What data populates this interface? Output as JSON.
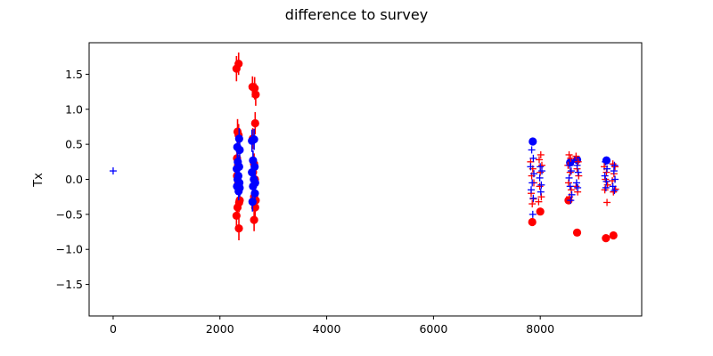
{
  "chart_data": {
    "type": "scatter",
    "title": "difference to survey",
    "xlabel": "",
    "ylabel": "Tx",
    "xlim": [
      -450,
      9900
    ],
    "ylim": [
      -1.95,
      1.95
    ],
    "xticks": [
      0,
      2000,
      4000,
      6000,
      8000
    ],
    "xtick_labels": [
      "0",
      "2000",
      "4000",
      "6000",
      "8000"
    ],
    "yticks": [
      -1.5,
      -1.0,
      -0.5,
      0.0,
      0.5,
      1.0,
      1.5
    ],
    "ytick_labels": [
      "−1.5",
      "−1.0",
      "−0.5",
      "0.0",
      "0.5",
      "1.0",
      "1.5"
    ],
    "grid": false,
    "colors": {
      "red": "#ff0000",
      "blue": "#0000ff",
      "axes": "#000000",
      "background": "#ffffff"
    },
    "series": [
      {
        "name": "red-circles-errorbars",
        "marker": "circle",
        "color": "#ff0000",
        "errorbars": true,
        "points": [
          [
            2310,
            1.58,
            0.18
          ],
          [
            2350,
            1.65,
            0.16
          ],
          [
            2330,
            0.68,
            0.18
          ],
          [
            2350,
            0.63,
            0.16
          ],
          [
            2320,
            0.3,
            0.15
          ],
          [
            2340,
            0.2,
            0.14
          ],
          [
            2320,
            0.05,
            0.12
          ],
          [
            2345,
            -0.05,
            0.12
          ],
          [
            2330,
            -0.4,
            0.15
          ],
          [
            2310,
            -0.52,
            0.16
          ],
          [
            2360,
            -0.33,
            0.14
          ],
          [
            2370,
            -0.3,
            0.14
          ],
          [
            2355,
            -0.7,
            0.17
          ],
          [
            2610,
            1.32,
            0.15
          ],
          [
            2650,
            1.3,
            0.16
          ],
          [
            2670,
            1.21,
            0.16
          ],
          [
            2660,
            0.8,
            0.16
          ],
          [
            2615,
            0.58,
            0.15
          ],
          [
            2640,
            0.22,
            0.15
          ],
          [
            2620,
            0.1,
            0.14
          ],
          [
            2655,
            0.0,
            0.13
          ],
          [
            2640,
            -0.25,
            0.14
          ],
          [
            2670,
            -0.3,
            0.14
          ],
          [
            2660,
            -0.4,
            0.14
          ],
          [
            2640,
            -0.58,
            0.16
          ]
        ]
      },
      {
        "name": "blue-circles-errorbars",
        "marker": "circle",
        "color": "#0000ff",
        "errorbars": true,
        "points": [
          [
            2325,
            0.46,
            0.16
          ],
          [
            2360,
            0.58,
            0.15
          ],
          [
            2370,
            0.42,
            0.15
          ],
          [
            2335,
            0.25,
            0.14
          ],
          [
            2360,
            0.18,
            0.14
          ],
          [
            2315,
            0.15,
            0.13
          ],
          [
            2345,
            0.05,
            0.13
          ],
          [
            2330,
            0.0,
            0.12
          ],
          [
            2365,
            -0.05,
            0.12
          ],
          [
            2320,
            -0.1,
            0.12
          ],
          [
            2350,
            -0.17,
            0.13
          ],
          [
            2370,
            -0.12,
            0.13
          ],
          [
            2600,
            0.55,
            0.16
          ],
          [
            2640,
            0.57,
            0.15
          ],
          [
            2620,
            0.27,
            0.14
          ],
          [
            2650,
            0.18,
            0.14
          ],
          [
            2600,
            0.1,
            0.13
          ],
          [
            2635,
            0.0,
            0.13
          ],
          [
            2660,
            -0.05,
            0.13
          ],
          [
            2620,
            -0.1,
            0.13
          ],
          [
            2655,
            -0.2,
            0.13
          ],
          [
            2610,
            -0.32,
            0.14
          ]
        ]
      },
      {
        "name": "red-circles",
        "marker": "circle",
        "color": "#ff0000",
        "errorbars": false,
        "points": [
          [
            7850,
            -0.61
          ],
          [
            8000,
            -0.46
          ],
          [
            8530,
            -0.3
          ],
          [
            8690,
            -0.76
          ],
          [
            9230,
            -0.84
          ],
          [
            9370,
            -0.8
          ]
        ]
      },
      {
        "name": "blue-circles",
        "marker": "circle",
        "color": "#0000ff",
        "errorbars": false,
        "points": [
          [
            7860,
            0.54
          ],
          [
            8560,
            0.24
          ],
          [
            8690,
            0.28
          ],
          [
            9240,
            0.27
          ]
        ]
      },
      {
        "name": "red-plus",
        "marker": "plus",
        "color": "#ff0000",
        "points": [
          [
            7820,
            0.25
          ],
          [
            7860,
            0.15
          ],
          [
            7840,
            0.05
          ],
          [
            7880,
            -0.05
          ],
          [
            7830,
            -0.2
          ],
          [
            7870,
            -0.28
          ],
          [
            7850,
            -0.35
          ],
          [
            8010,
            0.35
          ],
          [
            7980,
            0.28
          ],
          [
            8030,
            0.2
          ],
          [
            8000,
            0.1
          ],
          [
            7990,
            -0.1
          ],
          [
            8020,
            -0.25
          ],
          [
            7970,
            -0.32
          ],
          [
            8540,
            0.35
          ],
          [
            8570,
            0.3
          ],
          [
            8520,
            0.2
          ],
          [
            8560,
            0.1
          ],
          [
            8530,
            -0.05
          ],
          [
            8580,
            -0.15
          ],
          [
            8550,
            -0.25
          ],
          [
            8670,
            0.33
          ],
          [
            8710,
            0.25
          ],
          [
            8690,
            0.15
          ],
          [
            8720,
            0.05
          ],
          [
            8670,
            -0.1
          ],
          [
            8700,
            -0.18
          ],
          [
            9200,
            0.18
          ],
          [
            9240,
            0.1
          ],
          [
            9220,
            0.0
          ],
          [
            9260,
            -0.08
          ],
          [
            9210,
            -0.15
          ],
          [
            9250,
            -0.33
          ],
          [
            9360,
            0.22
          ],
          [
            9400,
            0.18
          ],
          [
            9380,
            0.08
          ],
          [
            9350,
            -0.02
          ],
          [
            9410,
            -0.14
          ],
          [
            9370,
            -0.18
          ]
        ]
      },
      {
        "name": "blue-plus",
        "marker": "plus",
        "color": "#0000ff",
        "points": [
          [
            0,
            0.12
          ],
          [
            7840,
            0.42
          ],
          [
            7870,
            0.3
          ],
          [
            7820,
            0.18
          ],
          [
            7880,
            0.08
          ],
          [
            7850,
            -0.05
          ],
          [
            7830,
            -0.15
          ],
          [
            7870,
            -0.27
          ],
          [
            7860,
            -0.5
          ],
          [
            8000,
            0.18
          ],
          [
            8030,
            0.12
          ],
          [
            7990,
            0.02
          ],
          [
            8020,
            -0.08
          ],
          [
            8010,
            -0.18
          ],
          [
            8550,
            0.2
          ],
          [
            8580,
            0.12
          ],
          [
            8540,
            0.02
          ],
          [
            8560,
            -0.1
          ],
          [
            8590,
            -0.22
          ],
          [
            8570,
            -0.3
          ],
          [
            8690,
            0.2
          ],
          [
            8710,
            0.1
          ],
          [
            8680,
            -0.05
          ],
          [
            8700,
            -0.12
          ],
          [
            9220,
            0.25
          ],
          [
            9250,
            0.15
          ],
          [
            9210,
            0.05
          ],
          [
            9240,
            -0.03
          ],
          [
            9230,
            -0.12
          ],
          [
            9390,
            0.2
          ],
          [
            9380,
            0.12
          ],
          [
            9400,
            0.0
          ],
          [
            9360,
            -0.1
          ],
          [
            9390,
            -0.16
          ]
        ]
      }
    ]
  }
}
